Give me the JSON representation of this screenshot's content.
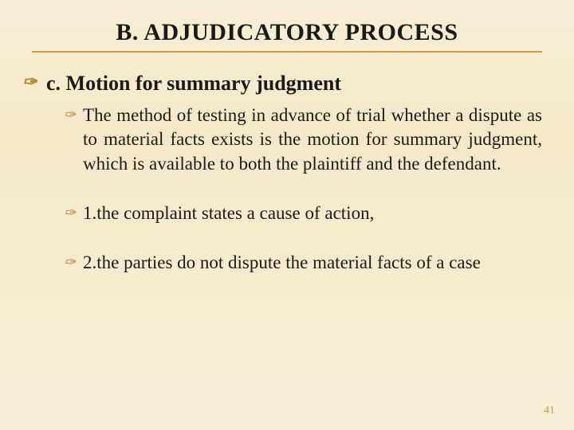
{
  "colors": {
    "accent": "#b88a3d",
    "rule": "#c49b50",
    "page_num": "#c49b50",
    "bg_top": "#f7eed6",
    "bg_mid": "#f4e8c8",
    "text": "#1a1a1a"
  },
  "title": "B. ADJUDICATORY PROCESS",
  "section": {
    "label": "c. Motion for summary judgment",
    "paragraph": "The method of testing in advance of trial whether a dispute as to material facts exists is the motion for summary judgment, which is available to both the plaintiff and the defendant.",
    "items": [
      "1.the complaint states a cause of action,",
      "2.the parties do not dispute the material facts of a case"
    ]
  },
  "bullet_glyph": "✑",
  "page_number": "41"
}
